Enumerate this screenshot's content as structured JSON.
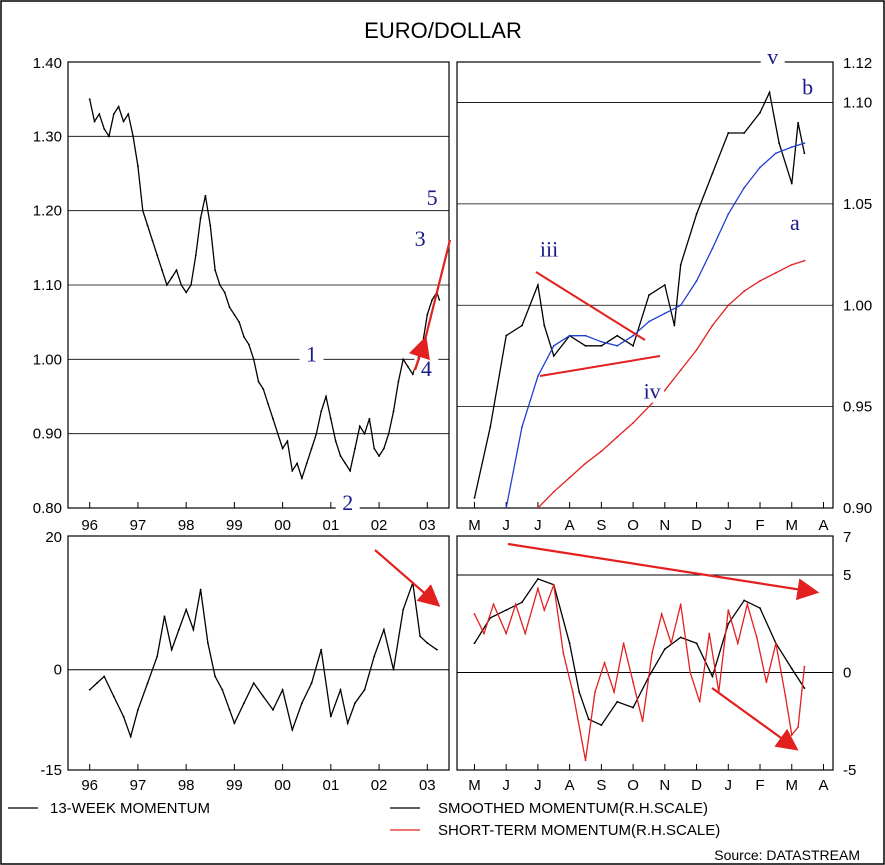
{
  "chart_data": [
    {
      "id": "price_weekly",
      "type": "line",
      "title": "EURO/DOLLAR",
      "x_ticks": [
        "96",
        "97",
        "98",
        "99",
        "00",
        "01",
        "02",
        "03"
      ],
      "y_ticks": [
        "0.80",
        "0.90",
        "1.00",
        "1.10",
        "1.20",
        "1.30",
        "1.40"
      ],
      "ylim": [
        0.8,
        1.4
      ],
      "grid": "horizontal",
      "series": [
        {
          "x": [
            1996.0,
            1996.1,
            1996.2,
            1996.3,
            1996.4,
            1996.5,
            1996.6,
            1996.7,
            1996.8,
            1996.9,
            1997.0,
            1997.1,
            1997.2,
            1997.3,
            1997.4,
            1997.5,
            1997.6,
            1997.7,
            1997.8,
            1997.9,
            1998.0,
            1998.1,
            1998.2,
            1998.3,
            1998.4,
            1998.5,
            1998.6,
            1998.7,
            1998.8,
            1998.9,
            1999.0,
            1999.1,
            1999.2,
            1999.3,
            1999.4,
            1999.5,
            1999.6,
            1999.7,
            1999.8,
            1999.9,
            2000.0,
            2000.1,
            2000.2,
            2000.3,
            2000.4,
            2000.5,
            2000.6,
            2000.7,
            2000.8,
            2000.9,
            2001.0,
            2001.1,
            2001.2,
            2001.3,
            2001.4,
            2001.5,
            2001.6,
            2001.7,
            2001.8,
            2001.9,
            2002.0,
            2002.1,
            2002.2,
            2002.3,
            2002.4,
            2002.5,
            2002.6,
            2002.7,
            2002.8,
            2002.9,
            2003.0,
            2003.1,
            2003.2,
            2003.25
          ],
          "values": [
            1.35,
            1.32,
            1.33,
            1.31,
            1.3,
            1.33,
            1.34,
            1.32,
            1.33,
            1.3,
            1.26,
            1.2,
            1.18,
            1.16,
            1.14,
            1.12,
            1.1,
            1.11,
            1.12,
            1.1,
            1.09,
            1.1,
            1.14,
            1.19,
            1.22,
            1.18,
            1.12,
            1.1,
            1.09,
            1.07,
            1.06,
            1.05,
            1.03,
            1.02,
            1.0,
            0.97,
            0.96,
            0.94,
            0.92,
            0.9,
            0.88,
            0.89,
            0.85,
            0.86,
            0.84,
            0.86,
            0.88,
            0.9,
            0.93,
            0.95,
            0.92,
            0.89,
            0.87,
            0.86,
            0.85,
            0.88,
            0.91,
            0.9,
            0.92,
            0.88,
            0.87,
            0.88,
            0.9,
            0.93,
            0.97,
            1.0,
            0.99,
            0.98,
            1.0,
            1.02,
            1.06,
            1.08,
            1.09,
            1.08
          ]
        }
      ],
      "annotations": [
        {
          "label": "1",
          "x": 2000.6,
          "y": 1.0
        },
        {
          "label": "2",
          "x": 2001.35,
          "y": 0.8
        },
        {
          "label": "3",
          "x": 2002.85,
          "y": 1.155
        },
        {
          "label": "4",
          "x": 2002.98,
          "y": 0.98
        },
        {
          "label": "5",
          "x": 2003.1,
          "y": 1.21
        }
      ]
    },
    {
      "id": "price_daily",
      "type": "line",
      "x_ticks": [
        "M",
        "J",
        "J",
        "A",
        "S",
        "O",
        "N",
        "D",
        "J",
        "F",
        "M",
        "A"
      ],
      "y_ticks": [
        "0.90",
        "0.95",
        "1.00",
        "1.05",
        "1.10",
        "1.12"
      ],
      "ylim": [
        0.9,
        1.12
      ],
      "grid": "horizontal",
      "series": [
        {
          "color": "#000000",
          "x": [
            0,
            0.5,
            1,
            1.5,
            2,
            2.2,
            2.5,
            3,
            3.5,
            4,
            4.5,
            5,
            5.5,
            6,
            6.3,
            6.5,
            7,
            7.5,
            8,
            8.5,
            9,
            9.3,
            9.6,
            10,
            10.2,
            10.4
          ],
          "values": [
            0.905,
            0.94,
            0.985,
            0.99,
            1.01,
            0.99,
            0.975,
            0.985,
            0.98,
            0.98,
            0.985,
            0.98,
            1.005,
            1.01,
            0.99,
            1.02,
            1.045,
            1.065,
            1.085,
            1.085,
            1.095,
            1.105,
            1.08,
            1.06,
            1.09,
            1.075
          ]
        },
        {
          "color": "#1f3fd1",
          "x": [
            1,
            1.5,
            2,
            2.5,
            3,
            3.5,
            4,
            4.5,
            5,
            5.5,
            6,
            6.5,
            7,
            7.5,
            8,
            8.5,
            9,
            9.5,
            10,
            10.4
          ],
          "values": [
            0.9,
            0.94,
            0.965,
            0.98,
            0.985,
            0.985,
            0.982,
            0.98,
            0.985,
            0.992,
            0.996,
            1.0,
            1.012,
            1.028,
            1.045,
            1.058,
            1.068,
            1.075,
            1.078,
            1.08
          ]
        },
        {
          "color": "#e32020",
          "x": [
            2,
            2.5,
            3,
            3.5,
            4,
            4.5,
            5,
            5.5,
            6,
            6.5,
            7,
            7.5,
            8,
            8.5,
            9,
            9.5,
            10,
            10.4
          ],
          "values": [
            0.9,
            0.908,
            0.915,
            0.922,
            0.928,
            0.935,
            0.942,
            0.95,
            0.958,
            0.968,
            0.978,
            0.99,
            1.0,
            1.007,
            1.012,
            1.016,
            1.02,
            1.022
          ]
        }
      ],
      "annotations": [
        {
          "label": "iii",
          "x": 2.35,
          "y": 1.025
        },
        {
          "label": "iv",
          "x": 5.6,
          "y": 0.955
        },
        {
          "label": "v",
          "x": 9.4,
          "y": 1.12
        },
        {
          "label": "b",
          "x": 10.5,
          "y": 1.105
        },
        {
          "label": "a",
          "x": 10.1,
          "y": 1.038
        }
      ]
    },
    {
      "id": "momentum_13w",
      "type": "line",
      "legend": "13-WEEK MOMENTUM",
      "x_ticks": [
        "96",
        "97",
        "98",
        "99",
        "00",
        "01",
        "02",
        "03"
      ],
      "y_ticks": [
        "-15",
        "0",
        "20"
      ],
      "ylim": [
        -15,
        20
      ],
      "series": [
        {
          "x": [
            1996.0,
            1996.15,
            1996.3,
            1996.5,
            1996.7,
            1996.85,
            1997.0,
            1997.2,
            1997.4,
            1997.55,
            1997.7,
            1997.85,
            1998.0,
            1998.15,
            1998.3,
            1998.45,
            1998.6,
            1998.75,
            1998.9,
            1999.0,
            1999.2,
            1999.4,
            1999.6,
            1999.8,
            2000.0,
            2000.2,
            2000.4,
            2000.6,
            2000.8,
            2001.0,
            2001.2,
            2001.35,
            2001.5,
            2001.7,
            2001.9,
            2002.1,
            2002.3,
            2002.5,
            2002.7,
            2002.85,
            2003.0,
            2003.2
          ],
          "values": [
            -3,
            -2,
            -1,
            -4,
            -7,
            -10,
            -6,
            -2,
            2,
            8,
            3,
            6,
            9,
            6,
            12,
            4,
            -1,
            -3,
            -6,
            -8,
            -5,
            -2,
            -4,
            -6,
            -3,
            -9,
            -5,
            -2,
            3,
            -7,
            -3,
            -8,
            -5,
            -3,
            2,
            6,
            0,
            9,
            13,
            5,
            4,
            3
          ]
        }
      ]
    },
    {
      "id": "momentum_daily",
      "type": "line",
      "x_ticks": [
        "M",
        "J",
        "J",
        "A",
        "S",
        "O",
        "N",
        "D",
        "J",
        "F",
        "M",
        "A"
      ],
      "y_ticks": [
        "-5",
        "0",
        "5",
        "7"
      ],
      "ylim": [
        -5,
        7
      ],
      "series": [
        {
          "name": "SMOOTHED MOMENTUM(R.H.SCALE)",
          "color": "#000000",
          "x": [
            0,
            0.5,
            1,
            1.5,
            2,
            2.5,
            3,
            3.3,
            3.6,
            4,
            4.5,
            5,
            5.5,
            6,
            6.5,
            7,
            7.5,
            8,
            8.5,
            9,
            9.5,
            10,
            10.4
          ],
          "values": [
            1.5,
            2.8,
            3.2,
            3.6,
            4.8,
            4.5,
            1.5,
            -1,
            -2.4,
            -2.7,
            -1.5,
            -1.8,
            -0.2,
            1.2,
            1.8,
            1.5,
            -0.2,
            2.5,
            3.7,
            3.3,
            1.5,
            0.2,
            -0.8
          ]
        },
        {
          "name": "SHORT-TERM MOMENTUM(R.H.SCALE)",
          "color": "#e32020",
          "x": [
            0,
            0.3,
            0.6,
            1,
            1.3,
            1.6,
            2,
            2.2,
            2.5,
            2.8,
            3.1,
            3.5,
            3.8,
            4.1,
            4.4,
            4.7,
            5,
            5.3,
            5.6,
            5.9,
            6.2,
            6.5,
            6.8,
            7.1,
            7.4,
            7.7,
            8,
            8.3,
            8.6,
            8.9,
            9.2,
            9.5,
            9.8,
            10,
            10.2,
            10.4
          ],
          "values": [
            3,
            2,
            3.5,
            2,
            3.5,
            2,
            4.3,
            3.2,
            4.5,
            1,
            -1,
            -4.5,
            -1,
            0.5,
            -1,
            1.5,
            -0.5,
            -2.5,
            1,
            3,
            1.5,
            3.5,
            0,
            -1.5,
            2,
            -1,
            3.2,
            1.5,
            3.5,
            1.8,
            -0.5,
            1.5,
            -1.2,
            -3.2,
            -2.8,
            0.3
          ]
        }
      ]
    }
  ],
  "labels": {
    "title": "EURO/DOLLAR",
    "legend_13w": "13-WEEK MOMENTUM",
    "legend_smoothed": "SMOOTHED MOMENTUM(R.H.SCALE)",
    "legend_short": "SHORT-TERM MOMENTUM(R.H.SCALE)",
    "source": "Source: DATASTREAM"
  },
  "colors": {
    "black": "#000000",
    "blue": "#1f3fd1",
    "red": "#e32020",
    "label_navy": "#1a1a8c"
  }
}
